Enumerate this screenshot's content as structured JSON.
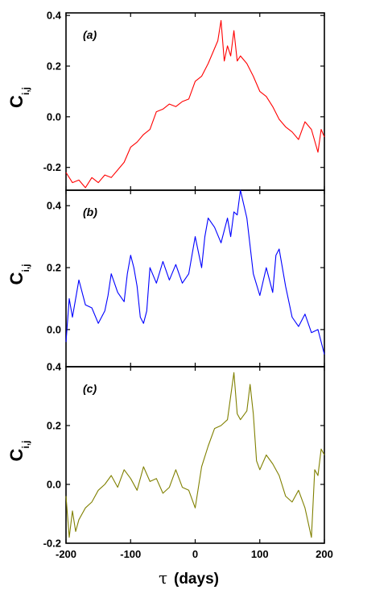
{
  "chart_data": {
    "type": "line",
    "x_axis": {
      "label_symbol": "τ",
      "label_text": "(days)",
      "range": [
        -200,
        200
      ],
      "ticks": [
        -200,
        -100,
        0,
        100,
        200
      ],
      "tick_labels": [
        "-200",
        "-100",
        "0",
        "100",
        "200"
      ]
    },
    "panels": [
      {
        "tag": "(a)",
        "ylabel_main": "C",
        "ylabel_sub": "i,j",
        "color": "#ff0000",
        "ylim": [
          -0.29,
          0.41
        ],
        "yticks": [
          -0.2,
          0.0,
          0.2,
          0.4
        ],
        "ytick_labels": [
          "-0.2",
          "0.0",
          "0.2",
          "0.4"
        ],
        "x": [
          -200,
          -190,
          -180,
          -170,
          -160,
          -150,
          -140,
          -130,
          -120,
          -110,
          -100,
          -90,
          -80,
          -70,
          -60,
          -50,
          -40,
          -30,
          -20,
          -10,
          0,
          10,
          20,
          30,
          35,
          40,
          45,
          50,
          55,
          60,
          65,
          70,
          80,
          90,
          100,
          110,
          120,
          130,
          140,
          150,
          160,
          170,
          180,
          190,
          195,
          200
        ],
        "y": [
          -0.22,
          -0.26,
          -0.25,
          -0.28,
          -0.24,
          -0.26,
          -0.23,
          -0.24,
          -0.21,
          -0.18,
          -0.12,
          -0.1,
          -0.07,
          -0.05,
          0.02,
          0.03,
          0.05,
          0.04,
          0.06,
          0.07,
          0.14,
          0.16,
          0.21,
          0.27,
          0.3,
          0.38,
          0.22,
          0.28,
          0.24,
          0.34,
          0.22,
          0.24,
          0.21,
          0.16,
          0.1,
          0.08,
          0.04,
          -0.01,
          -0.04,
          -0.06,
          -0.09,
          -0.02,
          -0.05,
          -0.14,
          -0.05,
          -0.08
        ]
      },
      {
        "tag": "(b)",
        "ylabel_main": "C",
        "ylabel_sub": "i,j",
        "color": "#0000ff",
        "ylim": [
          -0.12,
          0.45
        ],
        "yticks": [
          0.0,
          0.2,
          0.4
        ],
        "ytick_labels": [
          "0.0",
          "0.2",
          "0.4"
        ],
        "x": [
          -200,
          -195,
          -190,
          -185,
          -180,
          -170,
          -160,
          -150,
          -140,
          -135,
          -130,
          -120,
          -110,
          -105,
          -100,
          -95,
          -90,
          -85,
          -80,
          -75,
          -70,
          -60,
          -50,
          -40,
          -30,
          -20,
          -10,
          0,
          10,
          15,
          20,
          30,
          40,
          50,
          55,
          60,
          65,
          70,
          80,
          90,
          100,
          110,
          120,
          125,
          130,
          140,
          150,
          160,
          170,
          180,
          190,
          200
        ],
        "y": [
          -0.04,
          0.1,
          0.04,
          0.1,
          0.16,
          0.08,
          0.07,
          0.02,
          0.06,
          0.11,
          0.18,
          0.12,
          0.09,
          0.18,
          0.24,
          0.2,
          0.14,
          0.04,
          0.02,
          0.06,
          0.2,
          0.15,
          0.22,
          0.16,
          0.21,
          0.15,
          0.18,
          0.3,
          0.2,
          0.3,
          0.36,
          0.33,
          0.28,
          0.36,
          0.3,
          0.38,
          0.37,
          0.45,
          0.36,
          0.18,
          0.11,
          0.2,
          0.12,
          0.24,
          0.26,
          0.14,
          0.04,
          0.01,
          0.05,
          -0.01,
          0.0,
          -0.08
        ]
      },
      {
        "tag": "(c)",
        "ylabel_main": "C",
        "ylabel_sub": "i,j",
        "color": "#808000",
        "ylim": [
          -0.2,
          0.4
        ],
        "yticks": [
          -0.2,
          0.0,
          0.2,
          0.4
        ],
        "ytick_labels": [
          "-0.2",
          "0.0",
          "0.2",
          "0.4"
        ],
        "x": [
          -200,
          -195,
          -190,
          -185,
          -180,
          -170,
          -160,
          -150,
          -140,
          -130,
          -120,
          -110,
          -100,
          -90,
          -80,
          -70,
          -60,
          -50,
          -40,
          -30,
          -20,
          -10,
          0,
          10,
          20,
          30,
          40,
          50,
          55,
          60,
          65,
          70,
          80,
          85,
          90,
          95,
          100,
          110,
          120,
          130,
          140,
          150,
          160,
          170,
          180,
          185,
          190,
          195,
          200
        ],
        "y": [
          -0.04,
          -0.18,
          -0.09,
          -0.16,
          -0.12,
          -0.08,
          -0.06,
          -0.02,
          0.0,
          0.03,
          -0.01,
          0.05,
          0.02,
          -0.02,
          0.06,
          0.01,
          0.02,
          -0.03,
          -0.01,
          0.05,
          -0.01,
          -0.02,
          -0.08,
          0.06,
          0.13,
          0.19,
          0.2,
          0.22,
          0.3,
          0.38,
          0.24,
          0.22,
          0.25,
          0.34,
          0.24,
          0.08,
          0.05,
          0.1,
          0.07,
          0.03,
          -0.04,
          -0.06,
          -0.02,
          -0.08,
          -0.18,
          0.05,
          0.03,
          0.12,
          0.1
        ]
      }
    ]
  }
}
